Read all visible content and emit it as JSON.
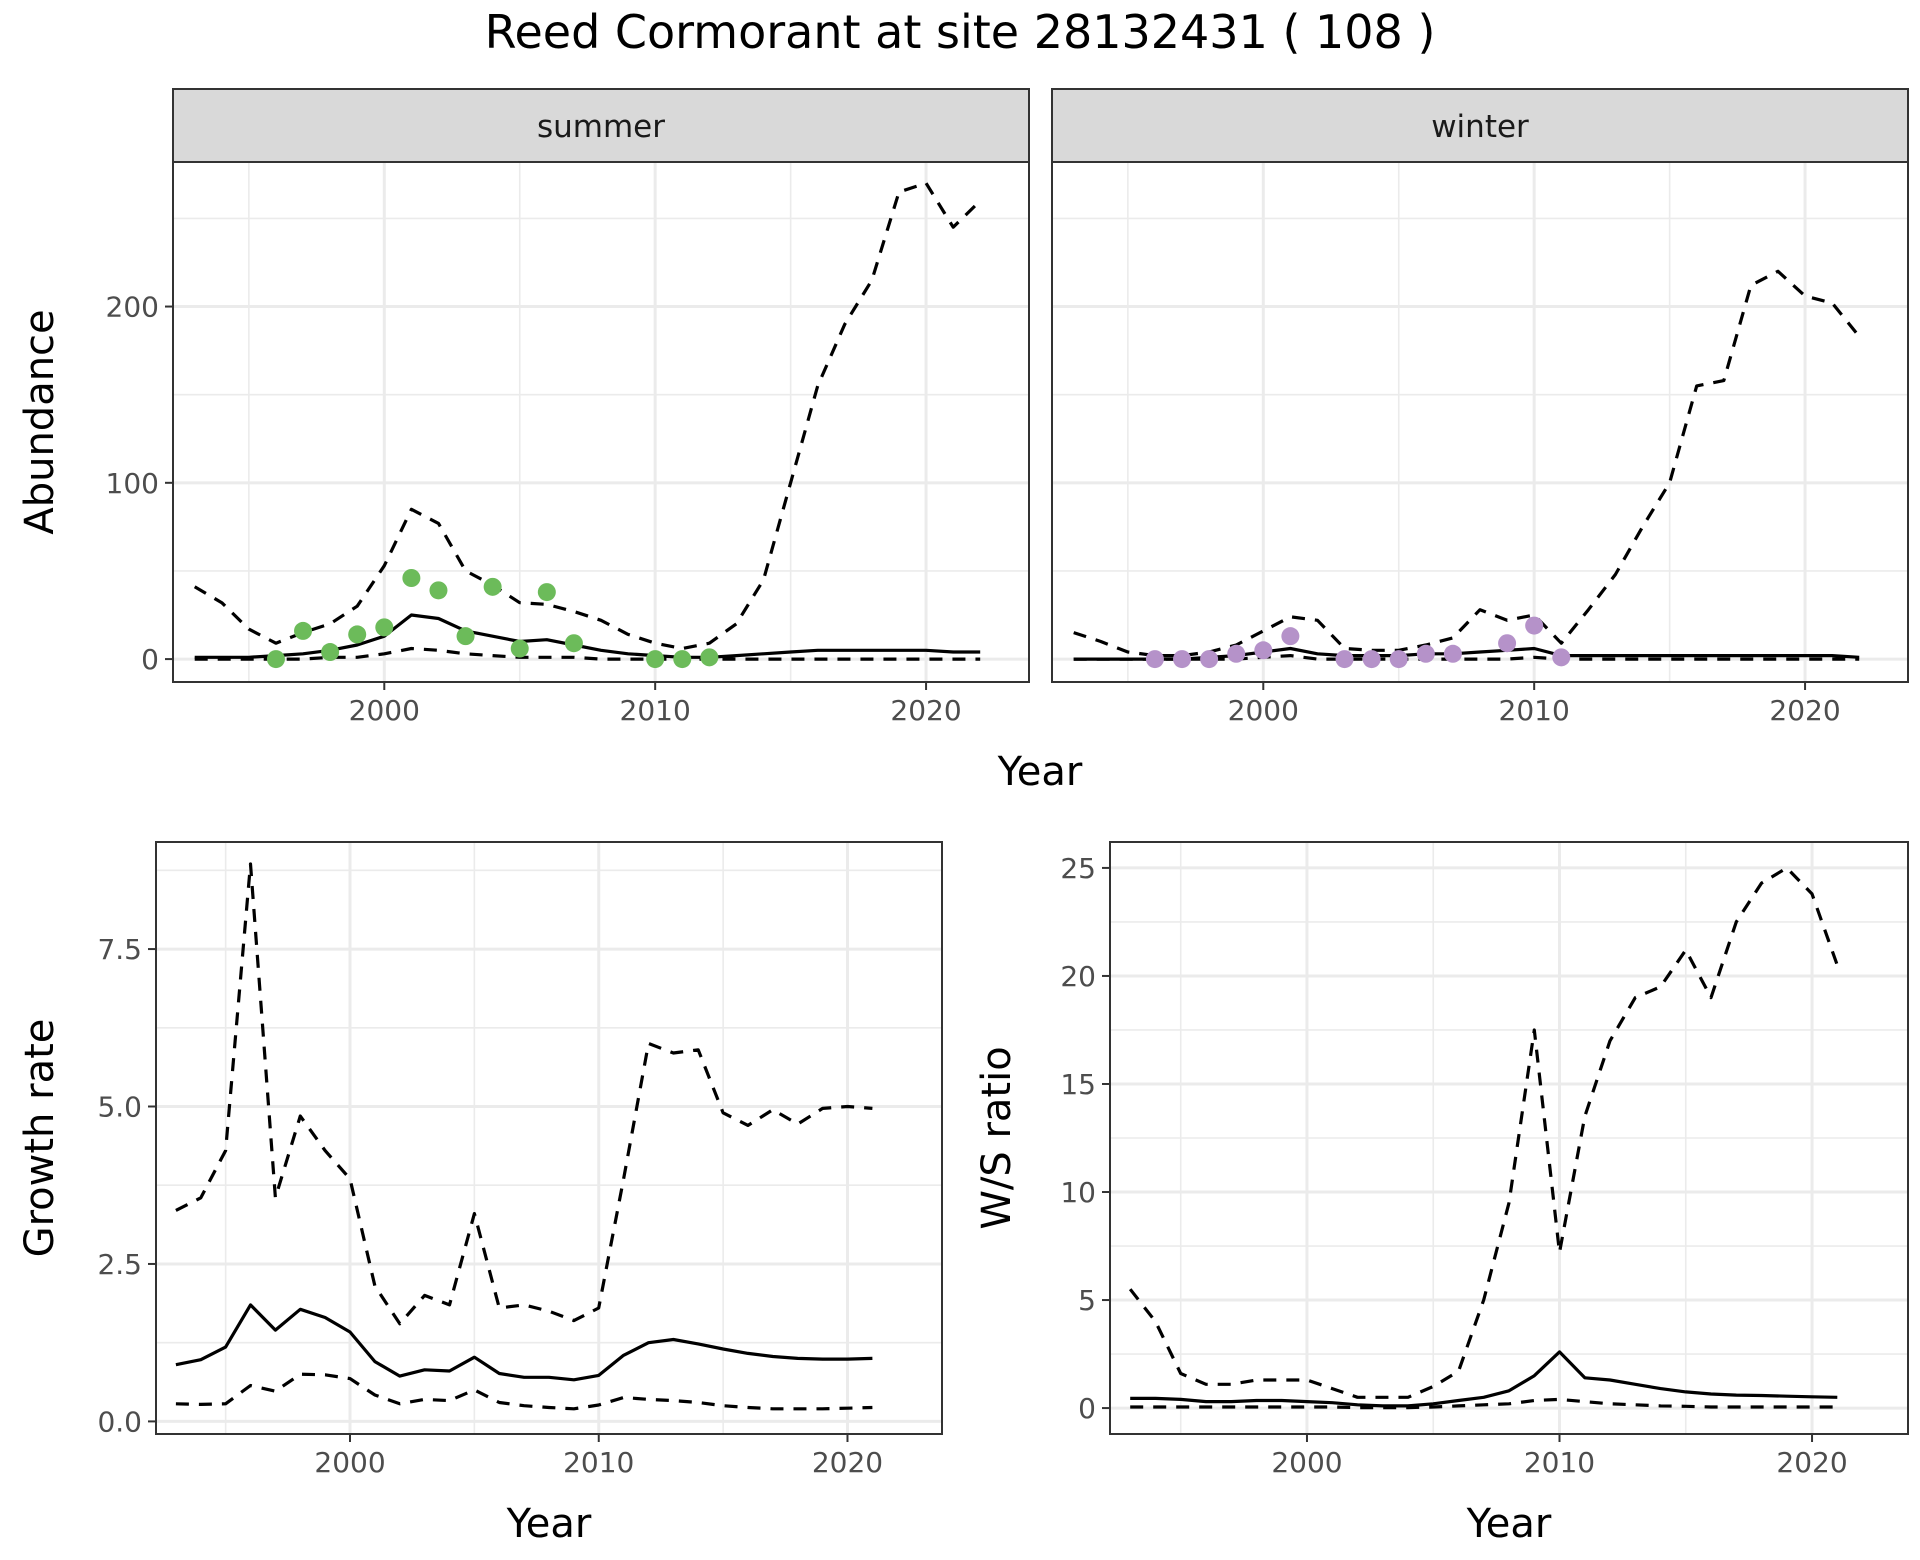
{
  "title": "Reed Cormorant at site 28132431 ( 108 )",
  "colors": {
    "summer_points": "#6cbb5a",
    "winter_points": "#b592c9",
    "lines": "#000000"
  },
  "chart_data": [
    {
      "id": "abundance_summer",
      "type": "line",
      "strip": "summer",
      "xlabel": "Year",
      "ylabel": "Abundance",
      "xlim": [
        1992.2,
        2023.8
      ],
      "ylim": [
        -13,
        282
      ],
      "xticks": [
        2000,
        2010,
        2020
      ],
      "yticks": [
        0,
        100,
        200
      ],
      "grid": true,
      "x": [
        1993,
        1994,
        1995,
        1996,
        1997,
        1998,
        1999,
        2000,
        2001,
        2002,
        2003,
        2004,
        2005,
        2006,
        2007,
        2008,
        2009,
        2010,
        2011,
        2012,
        2013,
        2014,
        2015,
        2016,
        2017,
        2018,
        2019,
        2020,
        2021,
        2022
      ],
      "series": [
        {
          "role": "mean",
          "line": "solid",
          "values": [
            1,
            1,
            1,
            2,
            3,
            5,
            8,
            13,
            25,
            23,
            16,
            13,
            10,
            11,
            8,
            5,
            3,
            2,
            1,
            1,
            2,
            3,
            4,
            5,
            5,
            5,
            5,
            5,
            4,
            4
          ]
        },
        {
          "role": "upper",
          "line": "dashed",
          "values": [
            41,
            32,
            17,
            9,
            15,
            20,
            30,
            53,
            85,
            77,
            50,
            42,
            32,
            31,
            27,
            22,
            14,
            9,
            6,
            9,
            20,
            45,
            100,
            155,
            190,
            215,
            265,
            270,
            245,
            260
          ]
        },
        {
          "role": "lower",
          "line": "dashed",
          "values": [
            0,
            0,
            0,
            0,
            0,
            1,
            1,
            3,
            6,
            5,
            3,
            2,
            1,
            1,
            1,
            0,
            0,
            0,
            0,
            0,
            0,
            0,
            0,
            0,
            0,
            0,
            0,
            0,
            0,
            0
          ]
        }
      ],
      "points": {
        "x": [
          1996,
          1997,
          1998,
          1999,
          2000,
          2001,
          2002,
          2003,
          2004,
          2005,
          2006,
          2007,
          2010,
          2011,
          2012
        ],
        "y": [
          0,
          16,
          4,
          14,
          18,
          46,
          39,
          13,
          41,
          6,
          38,
          9,
          0,
          0,
          1
        ]
      }
    },
    {
      "id": "abundance_winter",
      "type": "line",
      "strip": "winter",
      "xlabel": "Year",
      "ylabel": "Abundance",
      "xlim": [
        1992.2,
        2023.8
      ],
      "ylim": [
        -13,
        282
      ],
      "xticks": [
        2000,
        2010,
        2020
      ],
      "yticks": [
        0,
        100,
        200
      ],
      "grid": true,
      "x": [
        1993,
        1994,
        1995,
        1996,
        1997,
        1998,
        1999,
        2000,
        2001,
        2002,
        2003,
        2004,
        2005,
        2006,
        2007,
        2008,
        2009,
        2010,
        2011,
        2012,
        2013,
        2014,
        2015,
        2016,
        2017,
        2018,
        2019,
        2020,
        2021,
        2022
      ],
      "series": [
        {
          "role": "mean",
          "line": "solid",
          "values": [
            0,
            0,
            0,
            0,
            0,
            1,
            2,
            4,
            6,
            3,
            2,
            2,
            2,
            3,
            3,
            4,
            5,
            6,
            2,
            2,
            2,
            2,
            2,
            2,
            2,
            2,
            2,
            2,
            2,
            1
          ]
        },
        {
          "role": "upper",
          "line": "dashed",
          "values": [
            15,
            10,
            4,
            2,
            2,
            4,
            8,
            16,
            24,
            22,
            6,
            5,
            5,
            8,
            12,
            28,
            22,
            25,
            9,
            28,
            48,
            75,
            100,
            155,
            158,
            212,
            220,
            206,
            202,
            183
          ]
        },
        {
          "role": "lower",
          "line": "dashed",
          "values": [
            0,
            0,
            0,
            0,
            0,
            0,
            0,
            1,
            2,
            0,
            0,
            0,
            0,
            0,
            0,
            0,
            0,
            1,
            0,
            0,
            0,
            0,
            0,
            0,
            0,
            0,
            0,
            0,
            0,
            0
          ]
        }
      ],
      "points": {
        "x": [
          1996,
          1997,
          1998,
          1999,
          2000,
          2001,
          2003,
          2004,
          2005,
          2006,
          2007,
          2009,
          2010,
          2011
        ],
        "y": [
          0,
          0,
          0,
          3,
          5,
          13,
          0,
          0,
          0,
          3,
          3,
          9,
          19,
          1
        ]
      }
    },
    {
      "id": "growth_rate",
      "type": "line",
      "xlabel": "Year",
      "ylabel": "Growth rate",
      "xlim": [
        1992.2,
        2023.8
      ],
      "ylim": [
        -0.2,
        9.2
      ],
      "xticks": [
        2000,
        2010,
        2020
      ],
      "yticks": [
        0.0,
        2.5,
        5.0,
        7.5
      ],
      "ytick_labels": [
        "0.0",
        "2.5",
        "5.0",
        "7.5"
      ],
      "grid": true,
      "x": [
        1993,
        1994,
        1995,
        1996,
        1997,
        1998,
        1999,
        2000,
        2001,
        2002,
        2003,
        2004,
        2005,
        2006,
        2007,
        2008,
        2009,
        2010,
        2011,
        2012,
        2013,
        2014,
        2015,
        2016,
        2017,
        2018,
        2019,
        2020,
        2021
      ],
      "series": [
        {
          "role": "mean",
          "line": "solid",
          "values": [
            0.9,
            0.98,
            1.18,
            1.85,
            1.45,
            1.78,
            1.65,
            1.42,
            0.95,
            0.72,
            0.82,
            0.8,
            1.02,
            0.76,
            0.7,
            0.7,
            0.66,
            0.73,
            1.05,
            1.25,
            1.3,
            1.23,
            1.15,
            1.08,
            1.03,
            1.0,
            0.99,
            0.99,
            1.0
          ]
        },
        {
          "role": "upper",
          "line": "dashed",
          "values": [
            3.35,
            3.55,
            4.3,
            8.85,
            3.55,
            4.85,
            4.3,
            3.85,
            2.15,
            1.55,
            2.0,
            1.85,
            3.3,
            1.8,
            1.85,
            1.75,
            1.6,
            1.8,
            3.85,
            6.0,
            5.85,
            5.9,
            4.9,
            4.7,
            4.95,
            4.72,
            4.97,
            5.0,
            4.97
          ]
        },
        {
          "role": "lower",
          "line": "dashed",
          "values": [
            0.28,
            0.27,
            0.28,
            0.57,
            0.48,
            0.75,
            0.74,
            0.68,
            0.42,
            0.28,
            0.35,
            0.33,
            0.5,
            0.3,
            0.25,
            0.22,
            0.2,
            0.26,
            0.38,
            0.35,
            0.33,
            0.3,
            0.25,
            0.22,
            0.2,
            0.2,
            0.2,
            0.21,
            0.22
          ]
        }
      ]
    },
    {
      "id": "ws_ratio",
      "type": "line",
      "xlabel": "Year",
      "ylabel": "W/S ratio",
      "xlim": [
        1992.2,
        2023.8
      ],
      "ylim": [
        -1.2,
        26.2
      ],
      "xticks": [
        2000,
        2010,
        2020
      ],
      "yticks": [
        0,
        5,
        10,
        15,
        20,
        25
      ],
      "grid": true,
      "x": [
        1993,
        1994,
        1995,
        1996,
        1997,
        1998,
        1999,
        2000,
        2001,
        2002,
        2003,
        2004,
        2005,
        2006,
        2007,
        2008,
        2009,
        2010,
        2011,
        2012,
        2013,
        2014,
        2015,
        2016,
        2017,
        2018,
        2019,
        2020,
        2021
      ],
      "series": [
        {
          "role": "mean",
          "line": "solid",
          "values": [
            0.45,
            0.45,
            0.4,
            0.3,
            0.3,
            0.35,
            0.35,
            0.3,
            0.25,
            0.15,
            0.1,
            0.1,
            0.2,
            0.35,
            0.5,
            0.8,
            1.5,
            2.6,
            1.4,
            1.3,
            1.1,
            0.9,
            0.75,
            0.65,
            0.6,
            0.58,
            0.55,
            0.52,
            0.5
          ]
        },
        {
          "role": "upper",
          "line": "dashed",
          "values": [
            5.5,
            4.0,
            1.6,
            1.1,
            1.1,
            1.3,
            1.3,
            1.3,
            0.9,
            0.5,
            0.5,
            0.5,
            1.0,
            1.7,
            5.0,
            9.5,
            17.5,
            7.2,
            13.5,
            17.0,
            19.0,
            19.5,
            21.2,
            19.0,
            22.5,
            24.3,
            25.0,
            23.8,
            20.5
          ]
        },
        {
          "role": "lower",
          "line": "dashed",
          "values": [
            0.05,
            0.05,
            0.05,
            0.05,
            0.05,
            0.05,
            0.05,
            0.05,
            0.05,
            0.02,
            0.02,
            0.02,
            0.05,
            0.1,
            0.15,
            0.2,
            0.35,
            0.4,
            0.3,
            0.2,
            0.15,
            0.1,
            0.08,
            0.05,
            0.05,
            0.05,
            0.05,
            0.05,
            0.05
          ]
        }
      ]
    }
  ]
}
